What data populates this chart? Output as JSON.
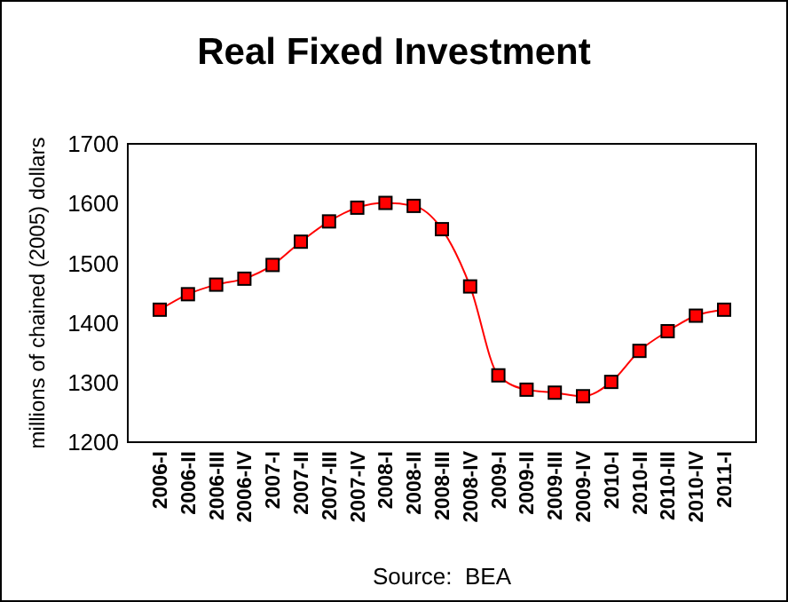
{
  "chart_data": {
    "type": "line",
    "title": "Real Fixed Investment",
    "ylabel": "millions of chained (2005) dollars",
    "annotations": [
      "Source:  BEA"
    ],
    "categories": [
      "2006-I",
      "2006-II",
      "2006-III",
      "2006-IV",
      "2007-I",
      "2007-II",
      "2007-III",
      "2007-IV",
      "2008-I",
      "2008-II",
      "2008-III",
      "2008-IV",
      "2009-I",
      "2009-II",
      "2009-III",
      "2009-IV",
      "2010-I",
      "2010-II",
      "2010-III",
      "2010-IV",
      "2011-I"
    ],
    "series": [
      {
        "color": "#ff0000",
        "values": [
          1422,
          1448,
          1464,
          1474,
          1497,
          1536,
          1570,
          1593,
          1601,
          1596,
          1557,
          1461,
          1312,
          1288,
          1283,
          1277,
          1301,
          1353,
          1386,
          1412,
          1422
        ]
      }
    ],
    "ylim": [
      1200,
      1700
    ],
    "yticks": [
      1200,
      1300,
      1400,
      1500,
      1600,
      1700
    ],
    "grid": false,
    "marker": "square",
    "line_style": "solid"
  }
}
